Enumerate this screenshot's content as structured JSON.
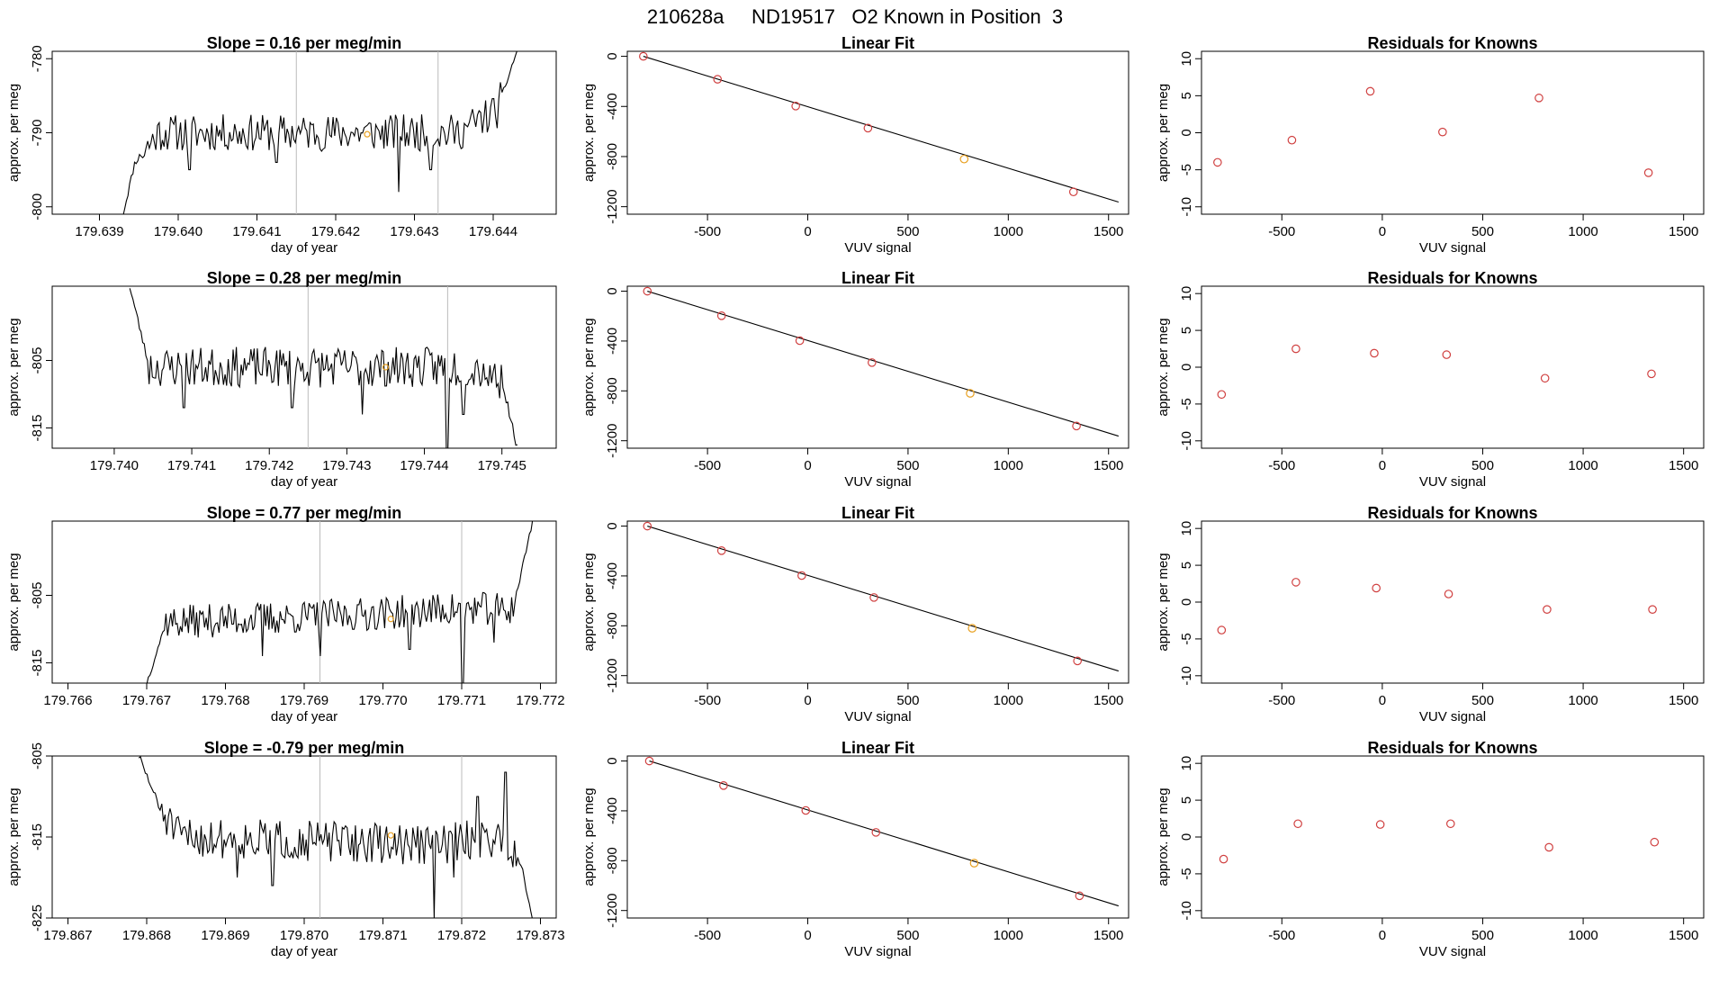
{
  "page": {
    "title": "210628a     ND19517   O2 Known in Position  3",
    "colors": {
      "background": "#ffffff",
      "line": "#000000",
      "point": "#d04040",
      "highlight": "#e8a020",
      "vline": "#bbbbbb"
    }
  },
  "chart_data": [
    {
      "id": "trace-1",
      "type": "line",
      "title": "Slope =  0.16  per meg/min",
      "xlabel": "day of year",
      "ylabel": "approx. per meg",
      "xlim": [
        179.6384,
        179.6448
      ],
      "ylim": [
        -801,
        -779
      ],
      "xticks": [
        179.639,
        179.64,
        179.641,
        179.642,
        179.643,
        179.644
      ],
      "xtick_labels": [
        "179.639",
        "179.640",
        "179.641",
        "179.642",
        "179.643",
        "179.644"
      ],
      "yticks": [
        -800,
        -790,
        -780
      ],
      "ytick_labels": [
        "-800",
        "-790",
        "-780"
      ],
      "vlines": [
        179.6415,
        179.6433
      ],
      "trace_x_range": [
        179.6393,
        179.6443
      ],
      "trace_y_range": [
        -801,
        -779
      ],
      "trace_shape": [
        [
          0,
          -801
        ],
        [
          0.03,
          -794
        ],
        [
          0.09,
          -790
        ],
        [
          0.85,
          -790
        ],
        [
          0.95,
          -787
        ],
        [
          1,
          -779
        ]
      ],
      "highlight_point": {
        "x": 179.6424,
        "y": -790.2
      },
      "trace_amp": 2.5,
      "trace_dips": [
        {
          "f": 0.17,
          "y": -795
        },
        {
          "f": 0.39,
          "y": -794
        },
        {
          "f": 0.7,
          "y": -798
        },
        {
          "f": 0.78,
          "y": -795
        }
      ],
      "seed": 11
    },
    {
      "id": "fit-1",
      "type": "scatter",
      "title": "Linear Fit",
      "xlabel": "VUV signal",
      "ylabel": "approx. per meg",
      "xlim": [
        -900,
        1600
      ],
      "ylim": [
        -1260,
        40
      ],
      "xticks": [
        -500,
        0,
        500,
        1000,
        1500
      ],
      "xtick_labels": [
        "-500",
        "0",
        "500",
        "1000",
        "1500"
      ],
      "yticks": [
        0,
        -400,
        -800,
        -1200
      ],
      "ytick_labels": [
        "0",
        "-400",
        "-800",
        "-1200"
      ],
      "fit_line": [
        [
          -820,
          0
        ],
        [
          1550,
          -1163
        ]
      ],
      "points": [
        [
          -820,
          0
        ],
        [
          -450,
          -183
        ],
        [
          -60,
          -397
        ],
        [
          300,
          -573
        ],
        [
          780,
          -820
        ],
        [
          1325,
          -1082
        ]
      ],
      "highlight_index": 4
    },
    {
      "id": "res-1",
      "type": "scatter",
      "title": "Residuals for Knowns",
      "xlabel": "VUV signal",
      "ylabel": "approx. per meg",
      "xlim": [
        -900,
        1600
      ],
      "ylim": [
        -11,
        11
      ],
      "xticks": [
        -500,
        0,
        500,
        1000,
        1500
      ],
      "xtick_labels": [
        "-500",
        "0",
        "500",
        "1000",
        "1500"
      ],
      "yticks": [
        10,
        5,
        0,
        -5,
        -10
      ],
      "ytick_labels": [
        "10",
        "5",
        "0",
        "-5",
        "-10"
      ],
      "points": [
        [
          -820,
          -4
        ],
        [
          -450,
          -1
        ],
        [
          -60,
          5.6
        ],
        [
          300,
          0.1
        ],
        [
          780,
          4.7
        ],
        [
          1325,
          -5.4
        ]
      ]
    },
    {
      "id": "trace-2",
      "type": "line",
      "title": "Slope =  0.28  per meg/min",
      "xlabel": "day of year",
      "ylabel": "approx. per meg",
      "xlim": [
        179.7392,
        179.7457
      ],
      "ylim": [
        -818,
        -794
      ],
      "xticks": [
        179.74,
        179.741,
        179.742,
        179.743,
        179.744,
        179.745
      ],
      "xtick_labels": [
        "179.740",
        "179.741",
        "179.742",
        "179.743",
        "179.744",
        "179.745"
      ],
      "yticks": [
        -815,
        -805
      ],
      "ytick_labels": [
        "-815",
        "-805"
      ],
      "vlines": [
        179.7425,
        179.7443
      ],
      "trace_x_range": [
        179.7402,
        179.7452
      ],
      "trace_y_range": [
        -818,
        -794
      ],
      "trace_shape": [
        [
          0,
          -794
        ],
        [
          0.05,
          -806
        ],
        [
          0.1,
          -806
        ],
        [
          0.9,
          -806
        ],
        [
          0.96,
          -808
        ],
        [
          1,
          -818
        ]
      ],
      "highlight_point": {
        "x": 179.7435,
        "y": -806
      },
      "trace_amp": 3,
      "trace_dips": [
        {
          "f": 0.14,
          "y": -812
        },
        {
          "f": 0.42,
          "y": -812
        },
        {
          "f": 0.6,
          "y": -813
        },
        {
          "f": 0.82,
          "y": -818
        },
        {
          "f": 0.86,
          "y": -813
        }
      ],
      "seed": 23
    },
    {
      "id": "fit-2",
      "type": "scatter",
      "title": "Linear Fit",
      "xlabel": "VUV signal",
      "ylabel": "approx. per meg",
      "xlim": [
        -900,
        1600
      ],
      "ylim": [
        -1260,
        40
      ],
      "xticks": [
        -500,
        0,
        500,
        1000,
        1500
      ],
      "xtick_labels": [
        "-500",
        "0",
        "500",
        "1000",
        "1500"
      ],
      "yticks": [
        0,
        -400,
        -800,
        -1200
      ],
      "ytick_labels": [
        "0",
        "-400",
        "-800",
        "-1200"
      ],
      "fit_line": [
        [
          -800,
          0
        ],
        [
          1550,
          -1163
        ]
      ],
      "points": [
        [
          -800,
          0
        ],
        [
          -430,
          -197
        ],
        [
          -40,
          -397
        ],
        [
          320,
          -573
        ],
        [
          810,
          -820
        ],
        [
          1340,
          -1082
        ]
      ],
      "highlight_index": 4
    },
    {
      "id": "res-2",
      "type": "scatter",
      "title": "Residuals for Knowns",
      "xlabel": "VUV signal",
      "ylabel": "approx. per meg",
      "xlim": [
        -900,
        1600
      ],
      "ylim": [
        -11,
        11
      ],
      "xticks": [
        -500,
        0,
        500,
        1000,
        1500
      ],
      "xtick_labels": [
        "-500",
        "0",
        "500",
        "1000",
        "1500"
      ],
      "yticks": [
        10,
        5,
        0,
        -5,
        -10
      ],
      "ytick_labels": [
        "10",
        "5",
        "0",
        "-5",
        "-10"
      ],
      "points": [
        [
          -800,
          -3.7
        ],
        [
          -430,
          2.5
        ],
        [
          -40,
          1.9
        ],
        [
          320,
          1.7
        ],
        [
          810,
          -1.5
        ],
        [
          1340,
          -0.9
        ]
      ]
    },
    {
      "id": "trace-3",
      "type": "line",
      "title": "Slope =  0.77  per meg/min",
      "xlabel": "day of year",
      "ylabel": "approx. per meg",
      "xlim": [
        179.7658,
        179.7722
      ],
      "ylim": [
        -818,
        -794
      ],
      "xticks": [
        179.766,
        179.767,
        179.768,
        179.769,
        179.77,
        179.771,
        179.772
      ],
      "xtick_labels": [
        "179.766",
        "179.767",
        "179.768",
        "179.769",
        "179.770",
        "179.771",
        "179.772"
      ],
      "yticks": [
        -815,
        -805
      ],
      "ytick_labels": [
        "-815",
        "-805"
      ],
      "vlines": [
        179.7692,
        179.771
      ],
      "trace_x_range": [
        179.767,
        179.7719
      ],
      "trace_y_range": [
        -818,
        -794
      ],
      "trace_shape": [
        [
          0,
          -818
        ],
        [
          0.05,
          -809
        ],
        [
          0.5,
          -808
        ],
        [
          0.8,
          -807
        ],
        [
          0.95,
          -807
        ],
        [
          1,
          -794
        ]
      ],
      "highlight_point": {
        "x": 179.7701,
        "y": -808.5
      },
      "trace_amp": 2.5,
      "trace_dips": [
        {
          "f": 0.3,
          "y": -814
        },
        {
          "f": 0.45,
          "y": -814
        },
        {
          "f": 0.68,
          "y": -813
        },
        {
          "f": 0.82,
          "y": -818
        },
        {
          "f": 0.9,
          "y": -812
        }
      ],
      "seed": 37
    },
    {
      "id": "fit-3",
      "type": "scatter",
      "title": "Linear Fit",
      "xlabel": "VUV signal",
      "ylabel": "approx. per meg",
      "xlim": [
        -900,
        1600
      ],
      "ylim": [
        -1260,
        40
      ],
      "xticks": [
        -500,
        0,
        500,
        1000,
        1500
      ],
      "xtick_labels": [
        "-500",
        "0",
        "500",
        "1000",
        "1500"
      ],
      "yticks": [
        0,
        -400,
        -800,
        -1200
      ],
      "ytick_labels": [
        "0",
        "-400",
        "-800",
        "-1200"
      ],
      "fit_line": [
        [
          -800,
          0
        ],
        [
          1550,
          -1163
        ]
      ],
      "points": [
        [
          -800,
          0
        ],
        [
          -430,
          -197
        ],
        [
          -30,
          -397
        ],
        [
          330,
          -573
        ],
        [
          820,
          -820
        ],
        [
          1345,
          -1082
        ]
      ],
      "highlight_index": 4
    },
    {
      "id": "res-3",
      "type": "scatter",
      "title": "Residuals for Knowns",
      "xlabel": "VUV signal",
      "ylabel": "approx. per meg",
      "xlim": [
        -900,
        1600
      ],
      "ylim": [
        -11,
        11
      ],
      "xticks": [
        -500,
        0,
        500,
        1000,
        1500
      ],
      "xtick_labels": [
        "-500",
        "0",
        "500",
        "1000",
        "1500"
      ],
      "yticks": [
        10,
        5,
        0,
        -5,
        -10
      ],
      "ytick_labels": [
        "10",
        "5",
        "0",
        "-5",
        "-10"
      ],
      "points": [
        [
          -800,
          -3.8
        ],
        [
          -430,
          2.7
        ],
        [
          -30,
          1.9
        ],
        [
          330,
          1.1
        ],
        [
          820,
          -1
        ],
        [
          1345,
          -1
        ]
      ]
    },
    {
      "id": "trace-4",
      "type": "line",
      "title": "Slope =  -0.79  per meg/min",
      "xlabel": "day of year",
      "ylabel": "approx. per meg",
      "xlim": [
        179.8668,
        179.8732
      ],
      "ylim": [
        -825,
        -805
      ],
      "xticks": [
        179.867,
        179.868,
        179.869,
        179.87,
        179.871,
        179.872,
        179.873
      ],
      "xtick_labels": [
        "179.867",
        "179.868",
        "179.869",
        "179.870",
        "179.871",
        "179.872",
        "179.873"
      ],
      "yticks": [
        -825,
        -815,
        -805
      ],
      "ytick_labels": [
        "-825",
        "-815",
        "-805"
      ],
      "vlines": [
        179.8702,
        179.872
      ],
      "trace_x_range": [
        179.8679,
        179.8729
      ],
      "trace_y_range": [
        -825,
        -805
      ],
      "trace_shape": [
        [
          0,
          -805
        ],
        [
          0.05,
          -811
        ],
        [
          0.1,
          -815
        ],
        [
          0.75,
          -816
        ],
        [
          0.9,
          -815
        ],
        [
          0.97,
          -818
        ],
        [
          1,
          -825
        ]
      ],
      "highlight_point": {
        "x": 179.8711,
        "y": -814.8
      },
      "trace_amp": 2.5,
      "trace_dips": [
        {
          "f": 0.25,
          "y": -820
        },
        {
          "f": 0.34,
          "y": -821
        },
        {
          "f": 0.75,
          "y": -825
        },
        {
          "f": 0.8,
          "y": -820
        }
      ],
      "trace_peaks": [
        {
          "f": 0.93,
          "y": -807
        },
        {
          "f": 0.86,
          "y": -810
        }
      ],
      "seed": 51
    },
    {
      "id": "fit-4",
      "type": "scatter",
      "title": "Linear Fit",
      "xlabel": "VUV signal",
      "ylabel": "approx. per meg",
      "xlim": [
        -900,
        1600
      ],
      "ylim": [
        -1260,
        40
      ],
      "xticks": [
        -500,
        0,
        500,
        1000,
        1500
      ],
      "xtick_labels": [
        "-500",
        "0",
        "500",
        "1000",
        "1500"
      ],
      "yticks": [
        0,
        -400,
        -800,
        -1200
      ],
      "ytick_labels": [
        "0",
        "-400",
        "-800",
        "-1200"
      ],
      "fit_line": [
        [
          -790,
          0
        ],
        [
          1550,
          -1163
        ]
      ],
      "points": [
        [
          -790,
          0
        ],
        [
          -420,
          -197
        ],
        [
          -10,
          -397
        ],
        [
          340,
          -573
        ],
        [
          830,
          -820
        ],
        [
          1355,
          -1082
        ]
      ],
      "highlight_index": 4
    },
    {
      "id": "res-4",
      "type": "scatter",
      "title": "Residuals for Knowns",
      "xlabel": "VUV signal",
      "ylabel": "approx. per meg",
      "xlim": [
        -900,
        1600
      ],
      "ylim": [
        -11,
        11
      ],
      "xticks": [
        -500,
        0,
        500,
        1000,
        1500
      ],
      "xtick_labels": [
        "-500",
        "0",
        "500",
        "1000",
        "1500"
      ],
      "yticks": [
        10,
        5,
        0,
        -5,
        -10
      ],
      "ytick_labels": [
        "10",
        "5",
        "0",
        "-5",
        "-10"
      ],
      "points": [
        [
          -790,
          -3
        ],
        [
          -420,
          1.8
        ],
        [
          -10,
          1.7
        ],
        [
          340,
          1.8
        ],
        [
          830,
          -1.4
        ],
        [
          1355,
          -0.7
        ]
      ]
    }
  ]
}
